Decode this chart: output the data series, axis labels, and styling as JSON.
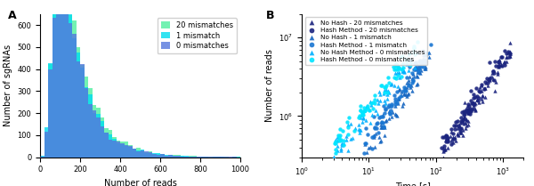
{
  "panel_A": {
    "xlabel": "Number of reads",
    "ylabel": "Number of sgRNAs",
    "xlim": [
      0,
      1000
    ],
    "ylim": [
      0,
      650
    ],
    "yticks": [
      0,
      100,
      200,
      300,
      400,
      500,
      600
    ],
    "xticks": [
      0,
      200,
      400,
      600,
      800,
      1000
    ],
    "colors": {
      "0_mismatch": "#5577dd",
      "1_mismatch": "#00ddee",
      "20_mismatch": "#44ee99"
    },
    "legend": [
      "0 mismatches",
      "1 mismatch",
      "20 mismatches"
    ]
  },
  "panel_B": {
    "xlabel": "Time [s]",
    "ylabel": "Number of reads",
    "colors": {
      "no_hash_20": "#1a237e",
      "hash_20": "#1a237e",
      "no_hash_1": "#1565c0",
      "hash_1": "#1976d2",
      "no_hash_0": "#00b0ff",
      "hash_0": "#00e5ff"
    },
    "legend": [
      "No Hash - 20 mismatches",
      "Hash Method - 20 mismatches",
      "No Hash - 1 mismatch",
      "Hash Method - 1 mismatch",
      "No Hash Method - 0 mismatches",
      "Hash Method - 0 mismatches"
    ]
  }
}
